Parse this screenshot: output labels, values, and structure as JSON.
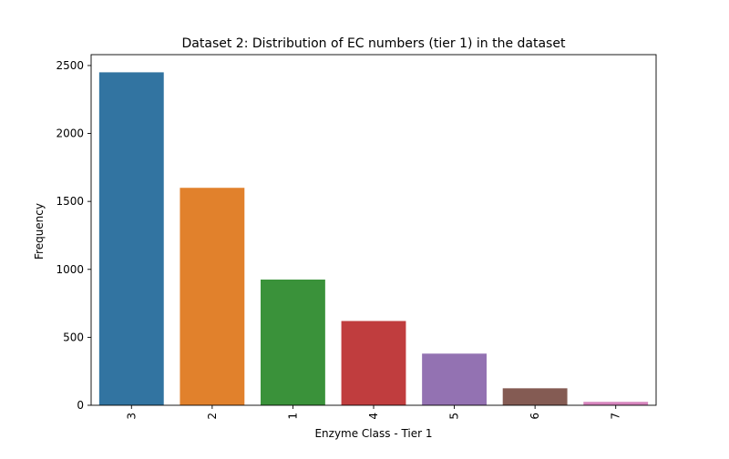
{
  "chart_data": {
    "type": "bar",
    "title": "Dataset 2: Distribution of EC numbers (tier 1) in the dataset",
    "xlabel": "Enzyme Class - Tier 1",
    "ylabel": "Frequency",
    "categories": [
      "3",
      "2",
      "1",
      "4",
      "5",
      "6",
      "7"
    ],
    "values": [
      2450,
      1600,
      925,
      620,
      380,
      125,
      25
    ],
    "colors": [
      "#3274a1",
      "#e1812c",
      "#3a923a",
      "#c03d3e",
      "#9372b2",
      "#845b53",
      "#d684bd"
    ],
    "ylim": [
      0,
      2580
    ],
    "yticks": [
      0,
      500,
      1000,
      1500,
      2000,
      2500
    ],
    "ytick_labels": [
      "0",
      "500",
      "1000",
      "1500",
      "2000",
      "2500"
    ],
    "xtick_rotation": "vertical",
    "grid": false,
    "legend": false
  }
}
